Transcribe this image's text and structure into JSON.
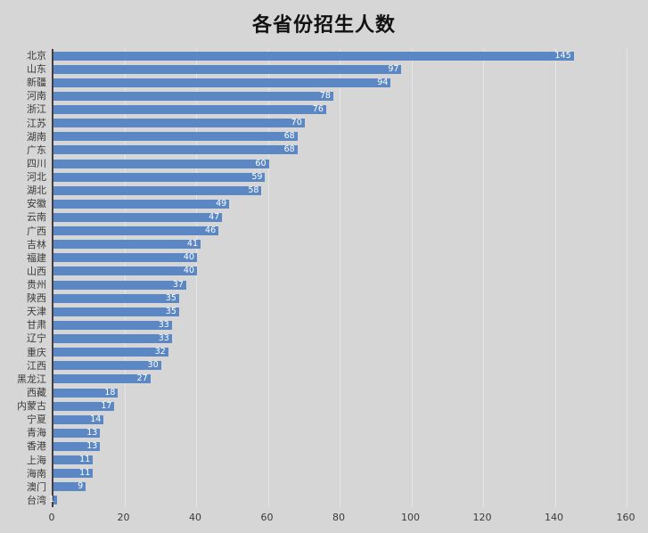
{
  "chart_data": {
    "type": "bar",
    "orientation": "horizontal",
    "title": "各省份招生人数",
    "categories": [
      "北京",
      "山东",
      "新疆",
      "河南",
      "浙江",
      "江苏",
      "湖南",
      "广东",
      "四川",
      "河北",
      "湖北",
      "安徽",
      "云南",
      "广西",
      "吉林",
      "福建",
      "山西",
      "贵州",
      "陕西",
      "天津",
      "甘肃",
      "辽宁",
      "重庆",
      "江西",
      "黑龙江",
      "西藏",
      "内蒙古",
      "宁夏",
      "青海",
      "香港",
      "上海",
      "海南",
      "澳门",
      "台湾"
    ],
    "values": [
      145,
      97,
      94,
      78,
      76,
      70,
      68,
      68,
      60,
      59,
      58,
      49,
      47,
      46,
      41,
      40,
      40,
      37,
      35,
      35,
      33,
      33,
      32,
      30,
      27,
      18,
      17,
      14,
      13,
      13,
      11,
      11,
      9,
      1
    ],
    "xlabel": "",
    "ylabel": "",
    "xlim": [
      0,
      160
    ],
    "x_tick_step": 20,
    "x_tick_labels": [
      "0",
      "20",
      "40",
      "60",
      "80",
      "100",
      "120",
      "140",
      "160"
    ],
    "grid": true,
    "legend": "none",
    "bar_color": "#5b87c4",
    "background_color": "#d6d6d6",
    "gridline_color": "#e6e6e6",
    "axis_line_color": "#404040",
    "value_label_color": "#ffffff",
    "axis_text_color": "#3a3a3a",
    "title_color": "#111111"
  }
}
